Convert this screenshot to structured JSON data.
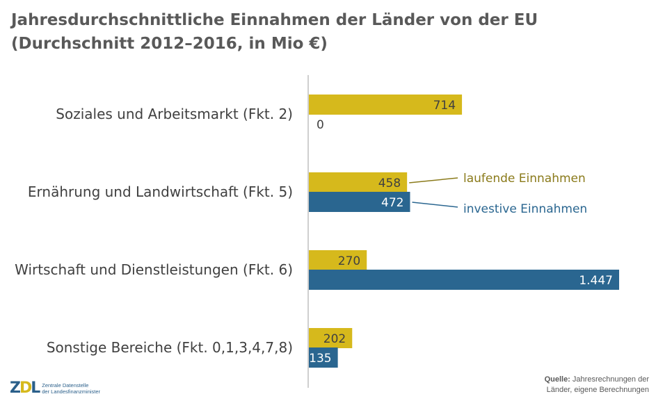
{
  "title": {
    "line1": "Jahresdurchschnittliche Einnahmen der Länder von der EU",
    "line2": "(Durchschnitt 2012–2016, in Mio €)"
  },
  "chart_data": {
    "type": "bar",
    "orientation": "horizontal",
    "categories": [
      "Soziales und Arbeitsmarkt (Fkt. 2)",
      "Ernährung und Landwirtschaft (Fkt. 5)",
      "Wirtschaft und Dienstleistungen (Fkt. 6)",
      "Sonstige Bereiche (Fkt. 0,1,3,4,7,8)"
    ],
    "series": [
      {
        "name": "laufende Einnahmen",
        "color": "#d6b91c",
        "label_color": "#404040",
        "values": [
          714,
          458,
          270,
          202
        ],
        "labels": [
          "714",
          "458",
          "270",
          "202"
        ]
      },
      {
        "name": "investive Einnahmen",
        "color": "#2a6690",
        "label_color": "#ffffff",
        "values": [
          0,
          472,
          1447,
          135
        ],
        "labels": [
          "0",
          "472",
          "1.447",
          "135"
        ]
      }
    ],
    "legend": {
      "placement": "inline-right-of-bars",
      "laufende_color": "#8a7a1a",
      "investive_color": "#2a6690"
    },
    "grid": false
  },
  "source": {
    "prefix": "Quelle:",
    "line1": "Jahresrechnungen der",
    "line2": "Länder, eigene Berechnungen"
  },
  "logo": {
    "mark": "ZDL",
    "line1": "Zentrale Datenstelle",
    "line2": "der Landesfinanzminister"
  }
}
